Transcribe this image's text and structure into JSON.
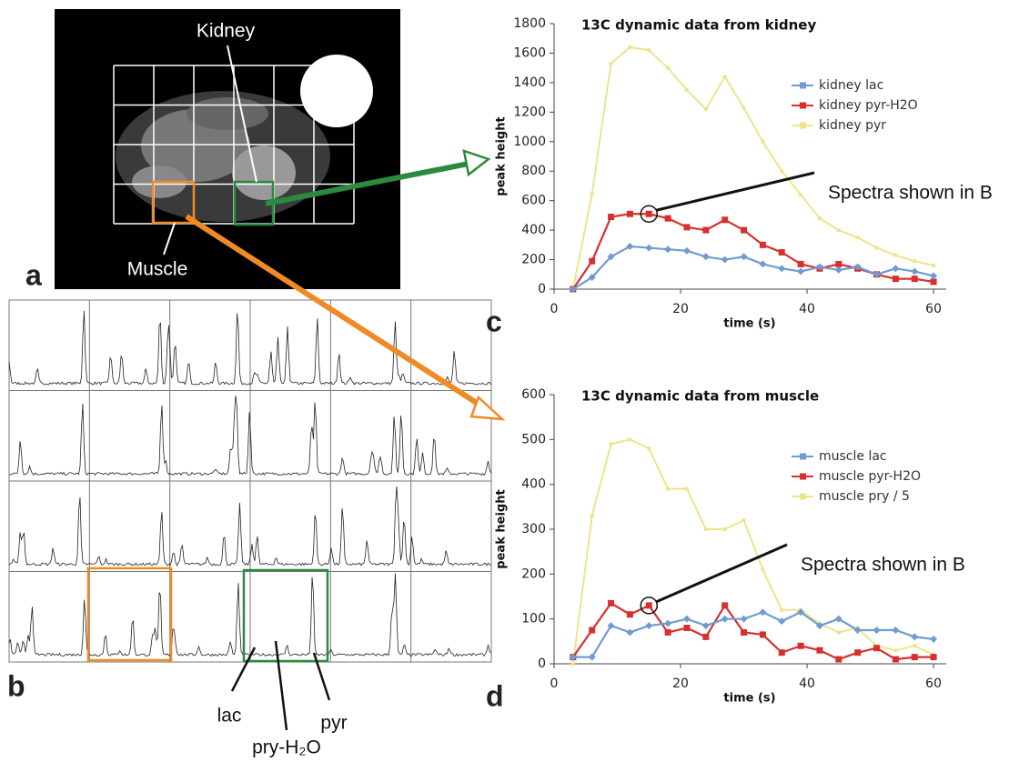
{
  "chart_data": [
    {
      "type": "line",
      "title": "13C dynamic data from kidney",
      "xlabel": "time (s)",
      "ylabel": "peak height",
      "x": [
        3,
        6,
        9,
        12,
        15,
        18,
        21,
        24,
        27,
        30,
        33,
        36,
        39,
        42,
        45,
        48,
        51,
        54,
        57,
        60
      ],
      "series": [
        {
          "name": "kidney lac",
          "color": "#6f9bd2",
          "values": [
            0,
            80,
            220,
            290,
            280,
            270,
            260,
            220,
            200,
            220,
            170,
            140,
            120,
            150,
            130,
            150,
            100,
            140,
            120,
            90
          ]
        },
        {
          "name": "kidney pyr-H2O",
          "color": "#d6302e",
          "values": [
            0,
            190,
            490,
            510,
            510,
            480,
            420,
            400,
            470,
            400,
            300,
            250,
            170,
            140,
            170,
            140,
            100,
            70,
            70,
            50
          ]
        },
        {
          "name": "kidney pyr",
          "color": "#ece58a",
          "values": [
            0,
            645,
            1530,
            1640,
            1620,
            1500,
            1350,
            1220,
            1440,
            1230,
            1000,
            800,
            640,
            480,
            400,
            350,
            280,
            230,
            190,
            160
          ]
        }
      ],
      "xlim": [
        0,
        62
      ],
      "xticks": [
        0,
        20,
        40,
        60
      ],
      "ylim": [
        0,
        1800
      ],
      "yticks": [
        0,
        200,
        400,
        600,
        800,
        1000,
        1200,
        1400,
        1600,
        1800
      ],
      "legend": "right",
      "annotation": "Spectra shown in B",
      "panel": "c"
    },
    {
      "type": "line",
      "title": "13C dynamic data from muscle",
      "xlabel": "time (s)",
      "ylabel": "peak height",
      "x": [
        3,
        6,
        9,
        12,
        15,
        18,
        21,
        24,
        27,
        30,
        33,
        36,
        39,
        42,
        45,
        48,
        51,
        54,
        57,
        60
      ],
      "series": [
        {
          "name": "muscle lac",
          "color": "#6f9bd2",
          "values": [
            15,
            15,
            85,
            70,
            85,
            90,
            100,
            85,
            100,
            100,
            115,
            95,
            115,
            85,
            100,
            75,
            75,
            75,
            60,
            55
          ]
        },
        {
          "name": "muscle pyr-H2O",
          "color": "#d6302e",
          "values": [
            15,
            75,
            135,
            110,
            130,
            70,
            80,
            60,
            130,
            70,
            65,
            25,
            40,
            30,
            10,
            25,
            35,
            10,
            15,
            15
          ]
        },
        {
          "name": "muscle pry / 5",
          "color": "#ece58a",
          "values": [
            0,
            330,
            490,
            500,
            480,
            390,
            390,
            300,
            300,
            320,
            210,
            120,
            120,
            90,
            70,
            80,
            40,
            30,
            40,
            20
          ]
        }
      ],
      "xlim": [
        0,
        62
      ],
      "xticks": [
        0,
        20,
        40,
        60
      ],
      "ylim": [
        0,
        600
      ],
      "yticks": [
        0,
        100,
        200,
        300,
        400,
        500,
        600
      ],
      "legend": "right",
      "annotation": "Spectra shown in B",
      "panel": "d"
    }
  ],
  "image": {
    "panel": "a",
    "labels": [
      "Kidney",
      "Muscle"
    ]
  },
  "spectra": {
    "panel": "b",
    "labels": [
      "lac",
      "pry-H₂O",
      "pyr"
    ]
  }
}
